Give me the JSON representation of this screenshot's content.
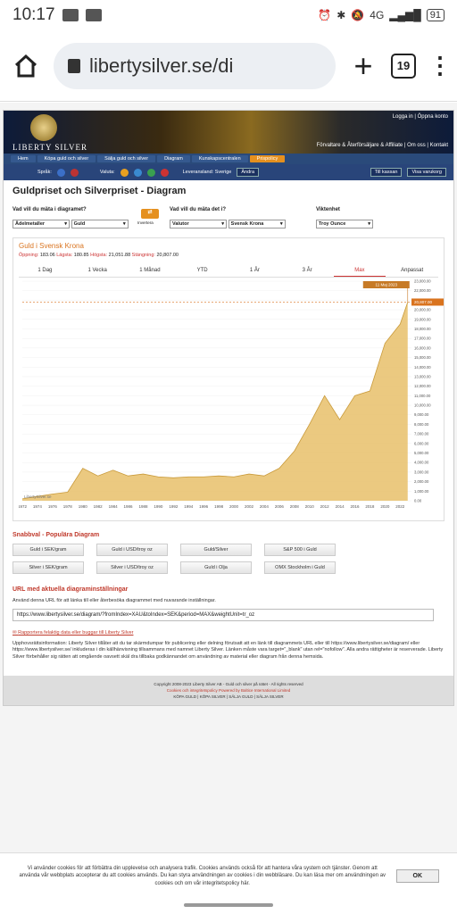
{
  "status_bar": {
    "time": "10:17",
    "battery": "91",
    "network": "4G"
  },
  "browser": {
    "url": "libertysilver.se/di",
    "tab_count": "19"
  },
  "site": {
    "toplinks": "Logga in | Öppna konto",
    "sublinks": "Förvaltare & Återförsäljare & Affiliate | Om oss | Kontakt",
    "logo_text": "LIBERTY SILVER",
    "nav": [
      "Hem",
      "Köpa guld och silver",
      "Sälja guld och silver",
      "Diagram",
      "Kunskapscentralen",
      "Prispolicy"
    ],
    "toolbar": {
      "language_label": "Språk:",
      "currency_label": "Valuta:",
      "country_label": "Leveransland: Sverige",
      "change_btn": "Ändra",
      "checkout_btn": "Till kassan",
      "cart_btn": "Visa varukorg"
    }
  },
  "main": {
    "title": "Guldpriset och Silverpriset - Diagram",
    "q1_label": "Vad vill du mäta i diagramet?",
    "q2_label": "Vad vill du mäta det i?",
    "q3_label": "Viktenhet",
    "sel1": "Ädelmetaller",
    "sel2": "Guld",
    "invert": "Invertera",
    "sel3": "Valutor",
    "sel4": "Svensk Krona",
    "sel5": "Troy Ounce",
    "chart_title": "Guld i Svensk Krona",
    "stats": {
      "open_label": "Öppning:",
      "open": "183.06",
      "low_label": "Lägsta:",
      "low": "180.85",
      "high_label": "Högsta:",
      "high": "21,051.88",
      "close_label": "Stängning:",
      "close": "20,807.00"
    },
    "periods": [
      "1 Dag",
      "1 Vecka",
      "1 Månad",
      "YTD",
      "1 År",
      "3 År",
      "Max",
      "Anpassat"
    ],
    "tooltip_date": "11 Maj 2023",
    "tooltip_value": "20,807.00",
    "watermark": "LibertySilver.se"
  },
  "chart_data": {
    "type": "area",
    "title": "Guld i Svensk Krona",
    "x": [
      1972,
      1974,
      1976,
      1978,
      1980,
      1982,
      1984,
      1986,
      1988,
      1990,
      1992,
      1994,
      1996,
      1998,
      2000,
      2002,
      2004,
      2006,
      2008,
      2010,
      2012,
      2014,
      2016,
      2018,
      2020,
      2022,
      2023
    ],
    "values": [
      200,
      450,
      700,
      900,
      3400,
      2600,
      3200,
      2600,
      2800,
      2500,
      2400,
      2500,
      2500,
      2600,
      2500,
      2800,
      2600,
      3400,
      5200,
      8000,
      11000,
      8500,
      11000,
      11500,
      16500,
      18500,
      20807
    ],
    "x_ticks": [
      "1972",
      "1974",
      "1976",
      "1978",
      "1980",
      "1982",
      "1984",
      "1986",
      "1988",
      "1990",
      "1992",
      "1994",
      "1996",
      "1998",
      "2000",
      "2002",
      "2004",
      "2006",
      "2008",
      "2010",
      "2012",
      "2014",
      "2016",
      "2018",
      "2020",
      "2022"
    ],
    "y_ticks": [
      "0.00",
      "1,000.00",
      "2,000.00",
      "3,000.00",
      "4,000.00",
      "5,000.00",
      "6,000.00",
      "7,000.00",
      "8,000.00",
      "9,000.00",
      "10,000.00",
      "11,000.00",
      "12,000.00",
      "13,000.00",
      "14,000.00",
      "15,000.00",
      "16,000.00",
      "17,000.00",
      "18,000.00",
      "19,000.00",
      "20,000.00",
      "21,000.00",
      "22,000.00",
      "23,000.00"
    ],
    "ylim": [
      0,
      23000
    ],
    "xlim": [
      1972,
      2023.5
    ],
    "color": "#e8c06a"
  },
  "quick": {
    "title": "Snabbval - Populära Diagram",
    "buttons": [
      "Guld i SEK/gram",
      "Guld i USD/troy oz",
      "Guld/Silver",
      "S&P 500 i Guld",
      "Silver i SEK/gram",
      "Silver i USD/troy oz",
      "Guld i Olja",
      "OMX Stockholm i Guld"
    ]
  },
  "url_section": {
    "title": "URL med aktuella diagraminställningar",
    "desc": "Använd denna URL för att länka till eller återbesöka diagrammet med nuvarande inställningar.",
    "value": "https://www.libertysilver.se/diagram/?fromIndex=XAU&toIndex=SEK&period=MAX&weightUnit=tr_oz",
    "report": "Rapportera felaktig data eller buggar till Liberty Silver",
    "copyright_text": "Upphovsrättsinformation: Liberty Silver tillåter att du tar skärmdumpar för publicering eller delning förutsatt att en länk till diagrammets URL eller till https://www.libertysilver.se/diagram/ eller https://www.libertysilver.se/ inkluderas i din källhänvisning tillsammans med namnet Liberty Silver. Länken måste vara target=\"_blank\" utan rel=\"nofollow\". Alla andra rättigheter är reserverade. Liberty Silver förbehåller sig rätten att omgående oavsett skäl dra tillbaka godkännandet om användning av material eller diagram från denna hemsida."
  },
  "footer": {
    "line1": "Copyright 2008-2023 Liberty Silver AB - Guld och silver på nätet - All rights reserved",
    "line2": "Cookies och integritetspolicy   Powered by Baltice International Limited",
    "line3": "KÖPA GULD | KÖPA SILVER | SÄLJA GULD | SÄLJA SILVER"
  },
  "cookie": {
    "text": "Vi använder cookies för att förbättra din upplevelse och analysera trafik. Cookies används också för att hantera våra system och tjänster. Genom att använda vår webbplats accepterar du att cookies används. Du kan styra användningen av cookies i din webbläsare. Du kan läsa mer om användningen av cookies och om vår integritetspolicy här.",
    "ok": "OK"
  }
}
